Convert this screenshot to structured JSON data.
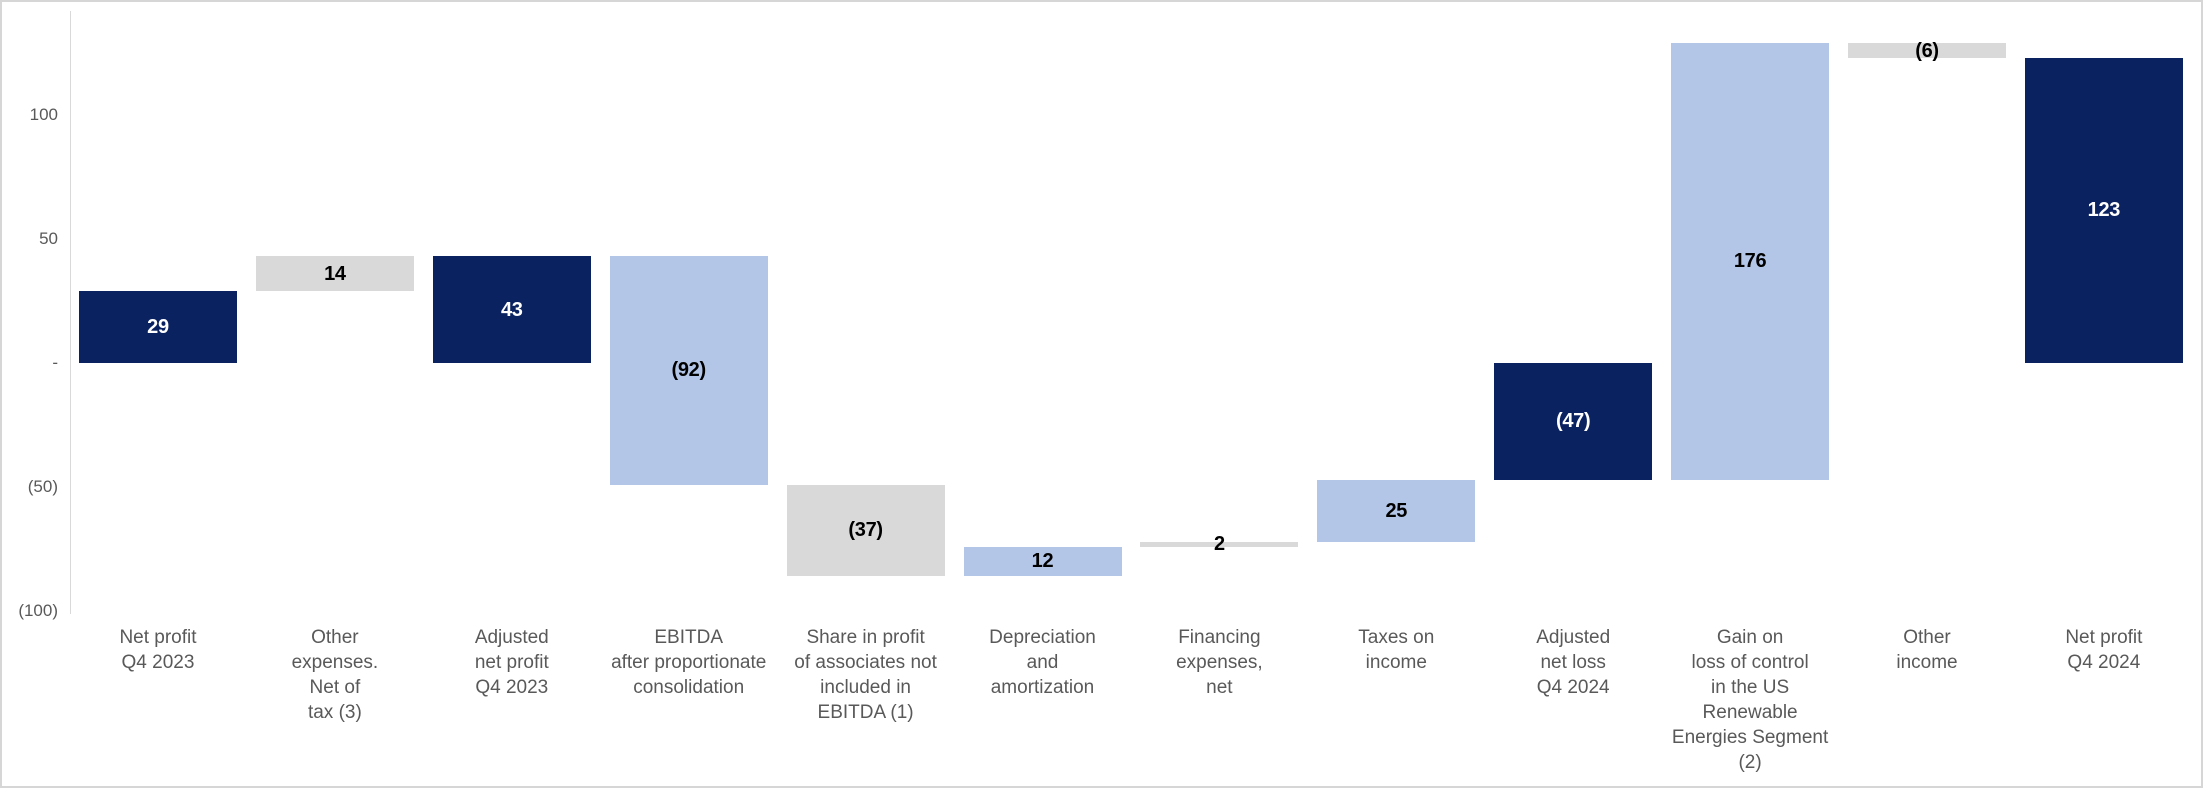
{
  "frame": {
    "background": "#ffffff",
    "border_color": "#d6d6d6"
  },
  "chart_data": {
    "type": "bar",
    "subtype": "waterfall",
    "title": "",
    "xlabel": "",
    "ylabel": "",
    "ylim": [
      -100,
      140
    ],
    "grid": false,
    "legend": false,
    "axis_text_color": "#595959",
    "palette": {
      "navy": {
        "bar": "#0b2260",
        "text": "#ffffff"
      },
      "lightblue": {
        "bar": "#b4c6e7",
        "text": "#000000"
      },
      "gray": {
        "bar": "#d9d9d9",
        "text": "#000000"
      }
    },
    "yticks": [
      {
        "value": 100,
        "label": "100"
      },
      {
        "value": 50,
        "label": "50"
      },
      {
        "value": 0,
        "label": "-"
      },
      {
        "value": -50,
        "label": "(50)"
      },
      {
        "value": -100,
        "label": "(100)"
      }
    ],
    "bars": [
      {
        "category_lines": [
          "Net profit",
          "Q4 2023"
        ],
        "label": "29",
        "value": 29,
        "start": 0,
        "end": 29,
        "style": "navy",
        "kind": "total"
      },
      {
        "category_lines": [
          "Other",
          "expenses.",
          "Net of",
          "tax (3)"
        ],
        "label": "14",
        "value": 14,
        "start": 29,
        "end": 43,
        "style": "gray",
        "kind": "increase"
      },
      {
        "category_lines": [
          "Adjusted",
          "net profit",
          "Q4 2023"
        ],
        "label": "43",
        "value": 43,
        "start": 0,
        "end": 43,
        "style": "navy",
        "kind": "total"
      },
      {
        "category_lines": [
          "EBITDA",
          "after proportionate",
          "consolidation"
        ],
        "label": "(92)",
        "value": -92,
        "start": 43,
        "end": -49,
        "style": "lightblue",
        "kind": "decrease"
      },
      {
        "category_lines": [
          "Share in profit",
          "of associates not",
          "included in",
          "EBITDA (1)"
        ],
        "label": "(37)",
        "value": -37,
        "start": -49,
        "end": -86,
        "style": "gray",
        "kind": "decrease"
      },
      {
        "category_lines": [
          "Depreciation",
          "and",
          "amortization"
        ],
        "label": "12",
        "value": 12,
        "start": -86,
        "end": -74,
        "style": "lightblue",
        "kind": "increase"
      },
      {
        "category_lines": [
          "Financing",
          "expenses,",
          "net"
        ],
        "label": "2",
        "value": 2,
        "start": -74,
        "end": -72,
        "style": "gray",
        "kind": "increase"
      },
      {
        "category_lines": [
          "Taxes on",
          "income"
        ],
        "label": "25",
        "value": 25,
        "start": -72,
        "end": -47,
        "style": "lightblue",
        "kind": "increase"
      },
      {
        "category_lines": [
          "Adjusted",
          "net loss",
          "Q4 2024"
        ],
        "label": "(47)",
        "value": -47,
        "start": -47,
        "end": 0,
        "style": "navy",
        "kind": "total"
      },
      {
        "category_lines": [
          "Gain on",
          "loss of control",
          "in the US",
          "Renewable",
          "Energies Segment",
          "(2)"
        ],
        "label": "176",
        "value": 176,
        "start": -47,
        "end": 129,
        "style": "lightblue",
        "kind": "increase"
      },
      {
        "category_lines": [
          "Other",
          "income"
        ],
        "label": "(6)",
        "value": -6,
        "start": 129,
        "end": 123,
        "style": "gray",
        "kind": "decrease"
      },
      {
        "category_lines": [
          "Net profit",
          "Q4 2024"
        ],
        "label": "123",
        "value": 123,
        "start": 0,
        "end": 123,
        "style": "navy",
        "kind": "total"
      }
    ]
  }
}
